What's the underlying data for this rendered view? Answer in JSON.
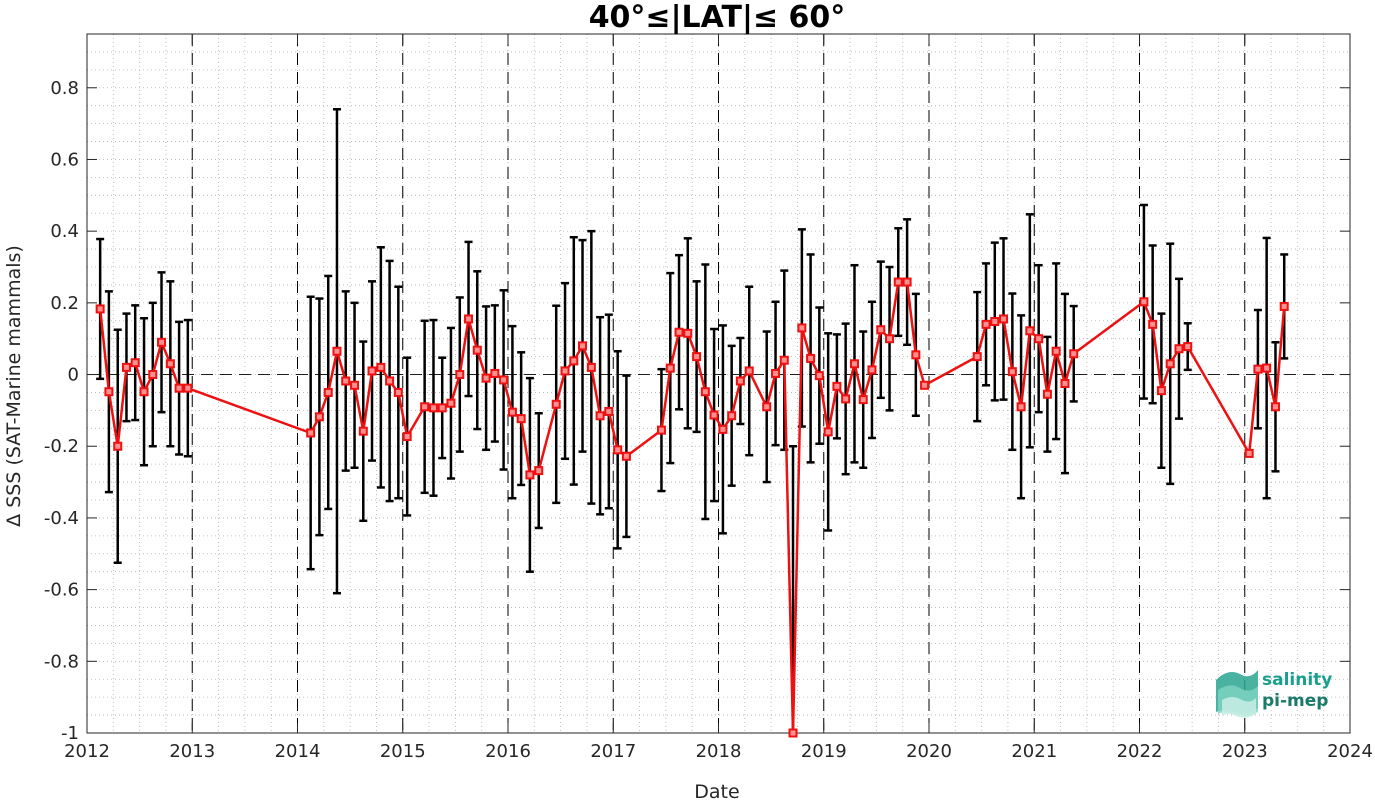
{
  "chart_data": {
    "type": "line",
    "title": "40°≤|LAT|≤ 60°",
    "xlabel": "Date",
    "ylabel": "Δ SSS (SAT-Marine mammals)",
    "xlim": [
      2012,
      2024
    ],
    "ylim": [
      -1,
      0.95
    ],
    "xticks": [
      "2012",
      "2013",
      "2014",
      "2015",
      "2016",
      "2017",
      "2018",
      "2019",
      "2020",
      "2021",
      "2022",
      "2023",
      "2024"
    ],
    "yticks": [
      "0.8",
      "0.6",
      "0.4",
      "0.2",
      "0",
      "-0.2",
      "-0.4",
      "-0.6",
      "-0.8",
      "-1"
    ],
    "ytick_values": [
      0.8,
      0.6,
      0.4,
      0.2,
      0,
      -0.2,
      -0.4,
      -0.6,
      -0.8,
      -1
    ],
    "grid": true,
    "colors": {
      "series": "#ee1111",
      "errorbar": "#000000",
      "dashed": "#000000",
      "logo": "#1a9f8c"
    },
    "series": [
      {
        "points": [
          [
            2012.125,
            0.183,
            0.195
          ],
          [
            2012.208,
            -0.048,
            0.28
          ],
          [
            2012.292,
            -0.2,
            0.325
          ],
          [
            2012.375,
            0.02,
            0.15
          ],
          [
            2012.458,
            0.033,
            0.16
          ],
          [
            2012.542,
            -0.048,
            0.205
          ],
          [
            2012.625,
            0.0,
            0.2
          ],
          [
            2012.708,
            0.09,
            0.195
          ],
          [
            2012.792,
            0.03,
            0.23
          ],
          [
            2012.875,
            -0.038,
            0.185
          ],
          [
            2012.958,
            -0.038,
            0.19
          ],
          [
            2014.125,
            -0.163,
            0.38
          ],
          [
            2014.208,
            -0.118,
            0.33
          ],
          [
            2014.292,
            -0.05,
            0.325
          ],
          [
            2014.375,
            0.065,
            0.675
          ],
          [
            2014.458,
            -0.018,
            0.25
          ],
          [
            2014.542,
            -0.03,
            0.23
          ],
          [
            2014.625,
            -0.158,
            0.25
          ],
          [
            2014.708,
            0.01,
            0.25
          ],
          [
            2014.792,
            0.02,
            0.335
          ],
          [
            2014.875,
            -0.018,
            0.335
          ],
          [
            2014.958,
            -0.05,
            0.295
          ],
          [
            2015.042,
            -0.173,
            0.22
          ],
          [
            2015.208,
            -0.09,
            0.24
          ],
          [
            2015.292,
            -0.093,
            0.245
          ],
          [
            2015.375,
            -0.093,
            0.14
          ],
          [
            2015.458,
            -0.08,
            0.21
          ],
          [
            2015.542,
            0.0,
            0.215
          ],
          [
            2015.625,
            0.155,
            0.215
          ],
          [
            2015.708,
            0.068,
            0.22
          ],
          [
            2015.792,
            -0.01,
            0.2
          ],
          [
            2015.875,
            0.003,
            0.19
          ],
          [
            2015.958,
            -0.015,
            0.25
          ],
          [
            2016.042,
            -0.105,
            0.24
          ],
          [
            2016.125,
            -0.123,
            0.185
          ],
          [
            2016.208,
            -0.28,
            0.27
          ],
          [
            2016.292,
            -0.268,
            0.16
          ],
          [
            2016.458,
            -0.083,
            0.275
          ],
          [
            2016.542,
            0.01,
            0.245
          ],
          [
            2016.625,
            0.038,
            0.345
          ],
          [
            2016.708,
            0.08,
            0.295
          ],
          [
            2016.792,
            0.02,
            0.38
          ],
          [
            2016.875,
            -0.115,
            0.275
          ],
          [
            2016.958,
            -0.103,
            0.27
          ],
          [
            2017.042,
            -0.21,
            0.275
          ],
          [
            2017.125,
            -0.228,
            0.225
          ],
          [
            2017.458,
            -0.155,
            0.17
          ],
          [
            2017.542,
            0.018,
            0.265
          ],
          [
            2017.625,
            0.118,
            0.215
          ],
          [
            2017.708,
            0.115,
            0.265
          ],
          [
            2017.792,
            0.05,
            0.21
          ],
          [
            2017.875,
            -0.048,
            0.355
          ],
          [
            2017.958,
            -0.113,
            0.24
          ],
          [
            2018.042,
            -0.153,
            0.29
          ],
          [
            2018.125,
            -0.115,
            0.195
          ],
          [
            2018.208,
            -0.018,
            0.12
          ],
          [
            2018.292,
            0.01,
            0.235
          ],
          [
            2018.458,
            -0.09,
            0.21
          ],
          [
            2018.542,
            0.003,
            0.2
          ],
          [
            2018.625,
            0.04,
            0.25
          ],
          [
            2018.708,
            -1.0,
            0.8
          ],
          [
            2018.792,
            0.13,
            0.275
          ],
          [
            2018.875,
            0.045,
            0.29
          ],
          [
            2018.958,
            -0.003,
            0.19
          ],
          [
            2019.042,
            -0.16,
            0.275
          ],
          [
            2019.125,
            -0.033,
            0.145
          ],
          [
            2019.208,
            -0.068,
            0.21
          ],
          [
            2019.292,
            0.03,
            0.275
          ],
          [
            2019.375,
            -0.07,
            0.19
          ],
          [
            2019.458,
            0.013,
            0.19
          ],
          [
            2019.542,
            0.125,
            0.19
          ],
          [
            2019.625,
            0.1,
            0.2
          ],
          [
            2019.708,
            0.258,
            0.15
          ],
          [
            2019.792,
            0.258,
            0.175
          ],
          [
            2019.875,
            0.055,
            0.17
          ],
          [
            2019.958,
            -0.03,
            0.0
          ],
          [
            2020.458,
            0.05,
            0.18
          ],
          [
            2020.542,
            0.14,
            0.17
          ],
          [
            2020.625,
            0.148,
            0.22
          ],
          [
            2020.708,
            0.155,
            0.225
          ],
          [
            2020.792,
            0.008,
            0.218
          ],
          [
            2020.875,
            -0.09,
            0.255
          ],
          [
            2020.958,
            0.122,
            0.325
          ],
          [
            2021.042,
            0.1,
            0.205
          ],
          [
            2021.125,
            -0.055,
            0.16
          ],
          [
            2021.208,
            0.065,
            0.245
          ],
          [
            2021.292,
            -0.025,
            0.25
          ],
          [
            2021.375,
            0.058,
            0.133
          ],
          [
            2022.042,
            0.203,
            0.27
          ],
          [
            2022.125,
            0.14,
            0.22
          ],
          [
            2022.208,
            -0.045,
            0.215
          ],
          [
            2022.292,
            0.03,
            0.335
          ],
          [
            2022.375,
            0.072,
            0.195
          ],
          [
            2022.458,
            0.078,
            0.065
          ],
          [
            2023.042,
            -0.22,
            0.0
          ],
          [
            2023.125,
            0.015,
            0.165
          ],
          [
            2023.208,
            0.018,
            0.363
          ],
          [
            2023.292,
            -0.09,
            0.18
          ],
          [
            2023.375,
            0.19,
            0.145
          ]
        ],
        "point_format": [
          "date_year",
          "delta_sss",
          "error"
        ]
      }
    ]
  },
  "logo": {
    "line1": "salinity",
    "line2": "pi-mep"
  }
}
